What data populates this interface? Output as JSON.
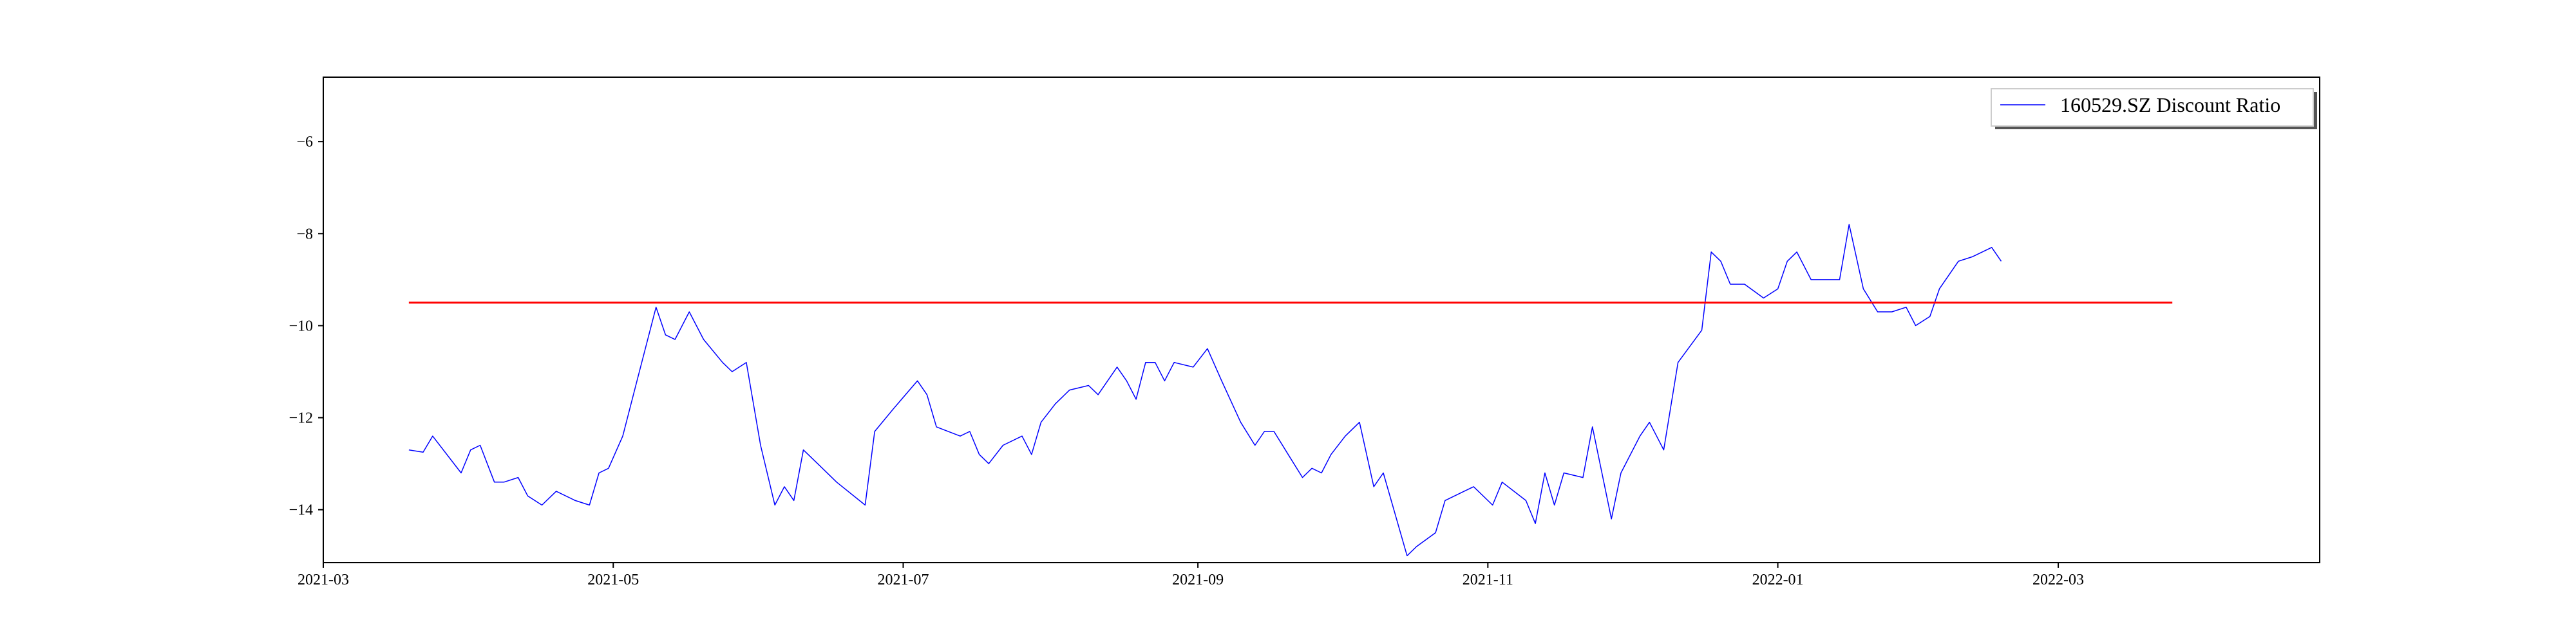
{
  "chart_data": {
    "type": "line",
    "title": "",
    "xlabel": "",
    "ylabel": "",
    "x_axis": {
      "type": "date",
      "range": [
        "2021-03-01",
        "2022-04-25"
      ],
      "ticks": [
        {
          "date": "2021-03-01",
          "label": "2021-03"
        },
        {
          "date": "2021-05-01",
          "label": "2021-05"
        },
        {
          "date": "2021-07-01",
          "label": "2021-07"
        },
        {
          "date": "2021-09-01",
          "label": "2021-09"
        },
        {
          "date": "2021-11-01",
          "label": "2021-11"
        },
        {
          "date": "2022-01-01",
          "label": "2022-01"
        },
        {
          "date": "2022-03-01",
          "label": "2022-03"
        }
      ]
    },
    "y_axis": {
      "range": [
        -15.15,
        -4.6
      ],
      "ticks": [
        {
          "value": -14,
          "label": "−14"
        },
        {
          "value": -12,
          "label": "−12"
        },
        {
          "value": -10,
          "label": "−10"
        },
        {
          "value": -8,
          "label": "−8"
        },
        {
          "value": -6,
          "label": "−6"
        }
      ]
    },
    "grid": false,
    "legend": {
      "position": "top-right",
      "entries": [
        {
          "label": "160529.SZ Discount Ratio",
          "color": "#0000ff"
        }
      ]
    },
    "series": [
      {
        "name": "160529.SZ Discount Ratio",
        "color": "#0000ff",
        "points": [
          [
            "2021-03-19",
            -12.7
          ],
          [
            "2021-03-22",
            -12.75
          ],
          [
            "2021-03-24",
            -12.4
          ],
          [
            "2021-03-30",
            -13.2
          ],
          [
            "2021-04-01",
            -12.7
          ],
          [
            "2021-04-03",
            -12.6
          ],
          [
            "2021-04-06",
            -13.4
          ],
          [
            "2021-04-08",
            -13.4
          ],
          [
            "2021-04-11",
            -13.3
          ],
          [
            "2021-04-13",
            -13.7
          ],
          [
            "2021-04-16",
            -13.9
          ],
          [
            "2021-04-19",
            -13.6
          ],
          [
            "2021-04-23",
            -13.8
          ],
          [
            "2021-04-26",
            -13.9
          ],
          [
            "2021-04-28",
            -13.2
          ],
          [
            "2021-04-30",
            -13.1
          ],
          [
            "2021-05-03",
            -12.4
          ],
          [
            "2021-05-06",
            -11.2
          ],
          [
            "2021-05-08",
            -10.4
          ],
          [
            "2021-05-10",
            -9.6
          ],
          [
            "2021-05-12",
            -10.2
          ],
          [
            "2021-05-14",
            -10.3
          ],
          [
            "2021-05-17",
            -9.7
          ],
          [
            "2021-05-20",
            -10.3
          ],
          [
            "2021-05-24",
            -10.8
          ],
          [
            "2021-05-26",
            -11.0
          ],
          [
            "2021-05-29",
            -10.8
          ],
          [
            "2021-06-01",
            -12.6
          ],
          [
            "2021-06-04",
            -13.9
          ],
          [
            "2021-06-06",
            -13.5
          ],
          [
            "2021-06-08",
            -13.8
          ],
          [
            "2021-06-10",
            -12.7
          ],
          [
            "2021-06-13",
            -13.0
          ],
          [
            "2021-06-17",
            -13.4
          ],
          [
            "2021-06-23",
            -13.9
          ],
          [
            "2021-06-25",
            -12.3
          ],
          [
            "2021-06-29",
            -11.8
          ],
          [
            "2021-07-04",
            -11.2
          ],
          [
            "2021-07-06",
            -11.5
          ],
          [
            "2021-07-08",
            -12.2
          ],
          [
            "2021-07-13",
            -12.4
          ],
          [
            "2021-07-15",
            -12.3
          ],
          [
            "2021-07-17",
            -12.8
          ],
          [
            "2021-07-19",
            -13.0
          ],
          [
            "2021-07-22",
            -12.6
          ],
          [
            "2021-07-26",
            -12.4
          ],
          [
            "2021-07-28",
            -12.8
          ],
          [
            "2021-07-30",
            -12.1
          ],
          [
            "2021-08-02",
            -11.7
          ],
          [
            "2021-08-05",
            -11.4
          ],
          [
            "2021-08-09",
            -11.3
          ],
          [
            "2021-08-11",
            -11.5
          ],
          [
            "2021-08-15",
            -10.9
          ],
          [
            "2021-08-17",
            -11.2
          ],
          [
            "2021-08-19",
            -11.6
          ],
          [
            "2021-08-21",
            -10.8
          ],
          [
            "2021-08-23",
            -10.8
          ],
          [
            "2021-08-25",
            -11.2
          ],
          [
            "2021-08-27",
            -10.8
          ],
          [
            "2021-08-31",
            -10.9
          ],
          [
            "2021-09-03",
            -10.5
          ],
          [
            "2021-09-06",
            -11.2
          ],
          [
            "2021-09-10",
            -12.1
          ],
          [
            "2021-09-13",
            -12.6
          ],
          [
            "2021-09-15",
            -12.3
          ],
          [
            "2021-09-17",
            -12.3
          ],
          [
            "2021-09-20",
            -12.8
          ],
          [
            "2021-09-23",
            -13.3
          ],
          [
            "2021-09-25",
            -13.1
          ],
          [
            "2021-09-27",
            -13.2
          ],
          [
            "2021-09-29",
            -12.8
          ],
          [
            "2021-10-02",
            -12.4
          ],
          [
            "2021-10-05",
            -12.1
          ],
          [
            "2021-10-08",
            -13.5
          ],
          [
            "2021-10-10",
            -13.2
          ],
          [
            "2021-10-15",
            -15.0
          ],
          [
            "2021-10-17",
            -14.8
          ],
          [
            "2021-10-21",
            -14.5
          ],
          [
            "2021-10-23",
            -13.8
          ],
          [
            "2021-10-27",
            -13.6
          ],
          [
            "2021-10-29",
            -13.5
          ],
          [
            "2021-11-02",
            -13.9
          ],
          [
            "2021-11-04",
            -13.4
          ],
          [
            "2021-11-09",
            -13.8
          ],
          [
            "2021-11-11",
            -14.3
          ],
          [
            "2021-11-13",
            -13.2
          ],
          [
            "2021-11-15",
            -13.9
          ],
          [
            "2021-11-17",
            -13.2
          ],
          [
            "2021-11-21",
            -13.3
          ],
          [
            "2021-11-23",
            -12.2
          ],
          [
            "2021-11-27",
            -14.2
          ],
          [
            "2021-11-29",
            -13.2
          ],
          [
            "2021-12-03",
            -12.4
          ],
          [
            "2021-12-05",
            -12.1
          ],
          [
            "2021-12-08",
            -12.7
          ],
          [
            "2021-12-11",
            -10.8
          ],
          [
            "2021-12-16",
            -10.1
          ],
          [
            "2021-12-18",
            -8.4
          ],
          [
            "2021-12-20",
            -8.6
          ],
          [
            "2021-12-22",
            -9.1
          ],
          [
            "2021-12-25",
            -9.1
          ],
          [
            "2021-12-29",
            -9.4
          ],
          [
            "2022-01-01",
            -9.2
          ],
          [
            "2022-01-03",
            -8.6
          ],
          [
            "2022-01-05",
            -8.4
          ],
          [
            "2022-01-08",
            -9.0
          ],
          [
            "2022-01-11",
            -9.0
          ],
          [
            "2022-01-14",
            -9.0
          ],
          [
            "2022-01-16",
            -7.8
          ],
          [
            "2022-01-19",
            -9.2
          ],
          [
            "2022-01-22",
            -9.7
          ],
          [
            "2022-01-25",
            -9.7
          ],
          [
            "2022-01-28",
            -9.6
          ],
          [
            "2022-01-30",
            -10.0
          ],
          [
            "2022-02-02",
            -9.8
          ],
          [
            "2022-02-04",
            -9.2
          ],
          [
            "2022-02-08",
            -8.6
          ],
          [
            "2022-02-11",
            -8.5
          ],
          [
            "2022-02-15",
            -8.3
          ],
          [
            "2022-02-17",
            -8.6
          ]
        ]
      }
    ],
    "threshold_line": {
      "value": -9.5,
      "start": "2021-03-19",
      "end": "2022-03-25",
      "color": "#ff0000"
    }
  }
}
